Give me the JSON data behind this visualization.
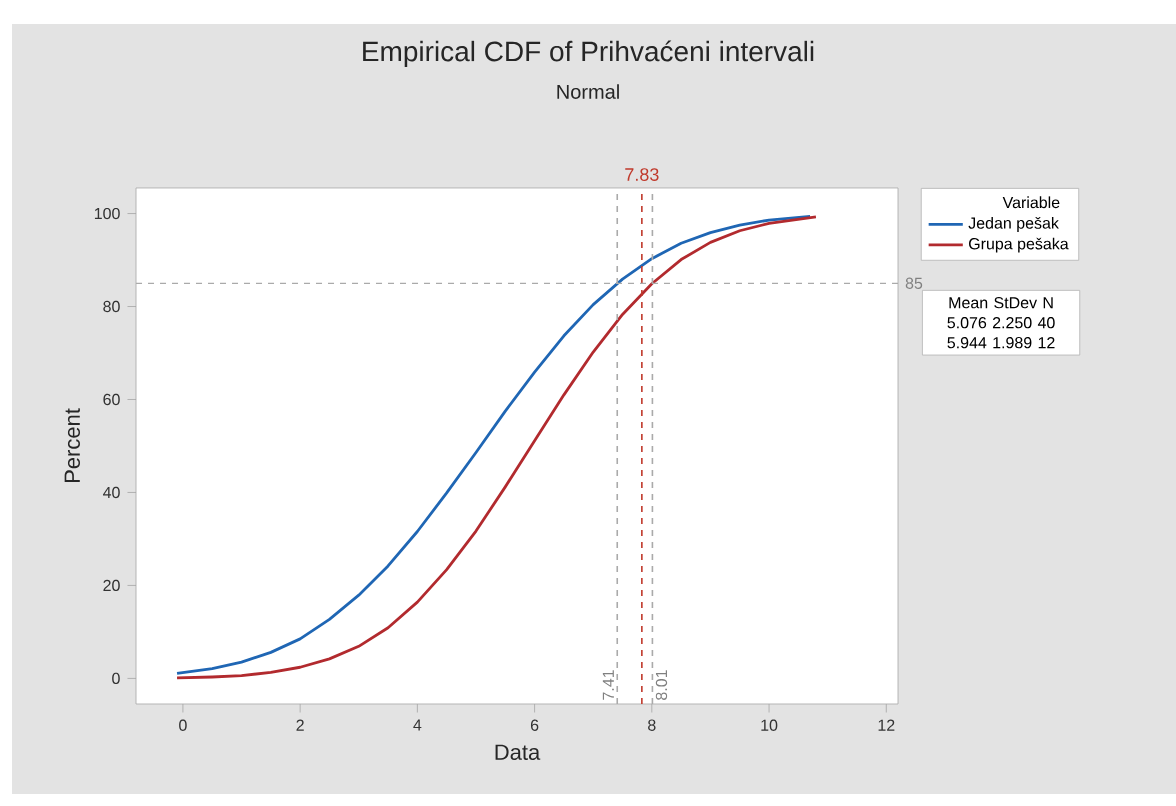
{
  "chart_data": {
    "type": "line",
    "title": "Empirical CDF of Prihvaćeni intervali",
    "subtitle": "Normal",
    "xlabel": "Data",
    "ylabel": "Percent",
    "legend_title": "Variable",
    "legend": "right",
    "xlim": [
      -0.8,
      12.2
    ],
    "xticks": [
      0,
      2,
      4,
      6,
      8,
      10,
      12
    ],
    "ylim": [
      -5.5,
      105.5
    ],
    "yticks": [
      0,
      20,
      40,
      60,
      80,
      100
    ],
    "grid": false,
    "marker": "none",
    "line_style": "solid",
    "series": [
      {
        "name": "Jedan pešak",
        "color": "#1f66b4",
        "x": [
          -0.1,
          0.5,
          1,
          1.5,
          2,
          2.5,
          3,
          3.5,
          4,
          4.5,
          5,
          5.5,
          6,
          6.5,
          7,
          7.5,
          8,
          8.5,
          9,
          9.5,
          10,
          10.7
        ],
        "values": [
          1.1,
          2.1,
          3.5,
          5.6,
          8.5,
          12.7,
          17.9,
          24.2,
          31.6,
          39.9,
          48.6,
          57.5,
          65.9,
          73.7,
          80.4,
          85.9,
          90.3,
          93.6,
          95.9,
          97.5,
          98.6,
          99.4
        ]
      },
      {
        "name": "Grupa pešaka",
        "color": "#b22a2e",
        "x": [
          -0.1,
          0.5,
          1,
          1.5,
          2,
          2.5,
          3,
          3.5,
          4,
          4.5,
          5,
          5.5,
          6,
          6.5,
          7,
          7.5,
          8,
          8.5,
          9,
          9.5,
          10,
          10.8
        ],
        "values": [
          0.1,
          0.3,
          0.6,
          1.3,
          2.4,
          4.2,
          6.9,
          10.9,
          16.4,
          23.4,
          31.7,
          41.2,
          51.1,
          61.0,
          70.2,
          78.3,
          84.9,
          90.1,
          93.8,
          96.3,
          97.9,
          99.3
        ]
      }
    ],
    "ref_lines": [
      {
        "axis": "x",
        "value": 7.83,
        "label": "7.83",
        "color": "#c0392b",
        "line_style": "dashed"
      },
      {
        "axis": "x",
        "value": 7.41,
        "label": "7.41",
        "color": "#aaaaaa",
        "line_style": "dashed"
      },
      {
        "axis": "x",
        "value": 8.01,
        "label": "8.01",
        "color": "#aaaaaa",
        "line_style": "dashed"
      },
      {
        "axis": "y",
        "value": 85,
        "label": "85",
        "color": "#aaaaaa",
        "line_style": "dashed"
      }
    ],
    "annotations": [
      "Mean StDev N",
      "5.076 2.250 40",
      "5.944 1.989 12"
    ]
  }
}
